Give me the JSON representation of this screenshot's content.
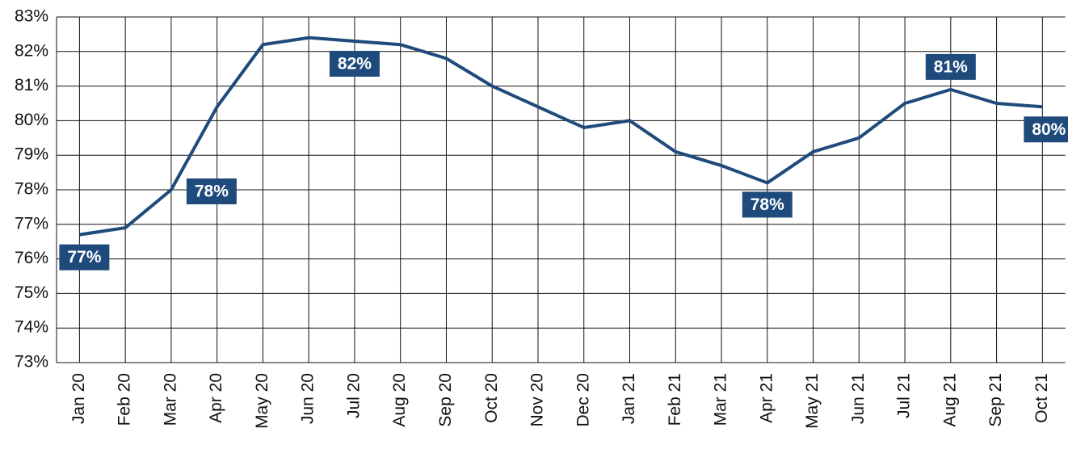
{
  "chart_data": {
    "type": "line",
    "categories": [
      "Jan 20",
      "Feb 20",
      "Mar 20",
      "Apr 20",
      "May 20",
      "Jun 20",
      "Jul 20",
      "Aug 20",
      "Sep 20",
      "Oct 20",
      "Nov 20",
      "Dec 20",
      "Jan 21",
      "Feb 21",
      "Mar 21",
      "Apr 21",
      "May 21",
      "Jun 21",
      "Jul 21",
      "Aug 21",
      "Sep 21",
      "Oct 21"
    ],
    "series": [
      {
        "color": "#1f4a7c",
        "values": [
          76.7,
          76.9,
          78.0,
          80.4,
          82.2,
          82.4,
          82.3,
          82.2,
          81.8,
          81.0,
          80.4,
          79.8,
          80.0,
          79.1,
          78.7,
          78.2,
          79.1,
          79.5,
          80.5,
          80.9,
          80.5,
          80.4
        ],
        "value_labels": [
          "77%",
          null,
          "78%",
          null,
          null,
          null,
          "82%",
          null,
          null,
          null,
          null,
          null,
          null,
          null,
          null,
          "78%",
          null,
          null,
          null,
          "81%",
          null,
          "80%"
        ]
      }
    ],
    "ylim": [
      73,
      83
    ],
    "yticks": [
      {
        "value": 73,
        "label": "73%"
      },
      {
        "value": 74,
        "label": "74%"
      },
      {
        "value": 75,
        "label": "75%"
      },
      {
        "value": 76,
        "label": "76%"
      },
      {
        "value": 77,
        "label": "77%"
      },
      {
        "value": 78,
        "label": "78%"
      },
      {
        "value": 79,
        "label": "79%"
      },
      {
        "value": 80,
        "label": "80%"
      },
      {
        "value": 81,
        "label": "81%"
      },
      {
        "value": 82,
        "label": "82%"
      },
      {
        "value": 83,
        "label": "83%"
      }
    ],
    "grid": true
  }
}
